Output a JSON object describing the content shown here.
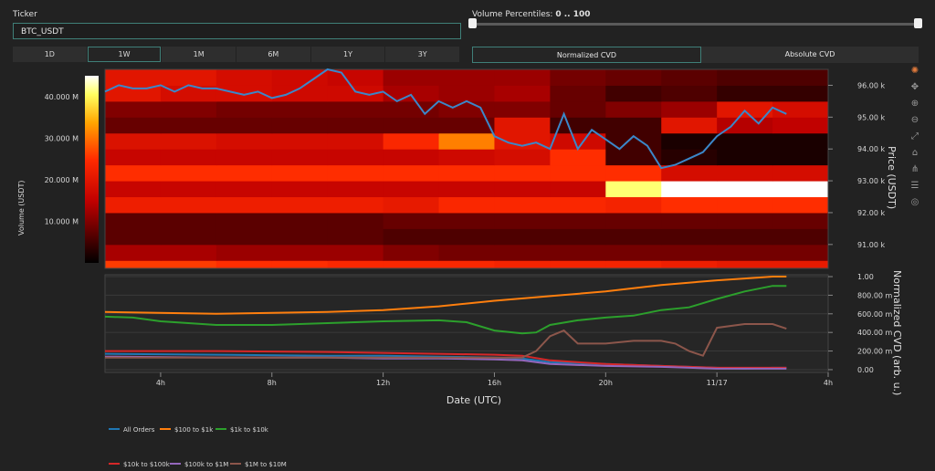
{
  "ticker": {
    "label": "Ticker",
    "value": "BTC_USDT"
  },
  "timeframes": [
    "1D",
    "1W",
    "1M",
    "6M",
    "1Y",
    "3Y"
  ],
  "active_timeframe": "1W",
  "volume_percentiles": {
    "label": "Volume Percentiles:",
    "value": "0 .. 100",
    "min": 0,
    "max": 100
  },
  "cvd_modes": {
    "normalized": "Normalized CVD",
    "absolute": "Absolute CVD",
    "active": "normalized"
  },
  "modebar_icons": [
    "plotly-logo-icon",
    "pan-icon",
    "zoom-in-icon",
    "zoom-out-icon",
    "autoscale-icon",
    "reset-icon",
    "spike-icon",
    "compare-icon",
    "hover-icon"
  ],
  "colors": {
    "accent": "#3f7f78",
    "all_orders": "#1f77b4",
    "r100_1k": "#ff7f0e",
    "r1k_10k": "#2ca02c",
    "r10k_100k": "#d62728",
    "r100k_1m": "#9467bd",
    "r1m_10m": "#8c564b"
  },
  "chart_data": [
    {
      "type": "heatmap",
      "colorbar": {
        "title": "Volume (USDT)",
        "ticks": [
          "10.000 M",
          "20.000 M",
          "30.000 M",
          "40.000 M"
        ],
        "tick_values": [
          10,
          20,
          30,
          40
        ],
        "range": [
          0,
          45
        ]
      },
      "y_right": {
        "label": "Price (USDT)",
        "ticks": [
          "91.00 k",
          "92.00 k",
          "93.00 k",
          "94.00 k",
          "95.00 k",
          "96.00 k"
        ],
        "tick_values": [
          91000,
          92000,
          93000,
          94000,
          95000,
          96000
        ],
        "range": [
          90250,
          96500
        ]
      },
      "x_range_hours": [
        2,
        28
      ],
      "price_bins": [
        90250,
        90750,
        91250,
        91750,
        92250,
        92750,
        93250,
        93750,
        94250,
        94750,
        95250,
        95750,
        96250
      ],
      "time_bins": [
        2,
        4,
        6,
        8,
        10,
        12,
        14,
        16,
        18,
        20,
        22,
        24,
        26,
        28
      ],
      "z": [
        [
          26,
          26,
          25,
          25,
          24,
          24,
          24,
          23,
          23,
          23,
          22,
          21,
          21
        ],
        [
          13,
          13,
          12,
          12,
          12,
          10,
          9,
          9,
          9,
          9,
          9,
          9,
          9
        ],
        [
          7,
          7,
          7,
          7,
          7,
          6,
          6,
          6,
          6,
          6,
          6,
          6,
          6
        ],
        [
          7,
          7,
          7,
          7,
          7,
          8,
          8,
          8,
          8,
          8,
          8,
          8,
          8
        ],
        [
          22,
          22,
          22,
          22,
          22,
          21,
          24,
          24,
          24,
          23,
          25,
          25,
          25
        ],
        [
          16,
          16,
          16,
          16,
          16,
          16,
          16,
          16,
          16,
          41,
          45,
          45,
          45
        ],
        [
          25,
          25,
          25,
          25,
          25,
          25,
          25,
          25,
          25,
          25,
          18,
          18,
          18
        ],
        [
          16,
          16,
          16,
          16,
          16,
          16,
          17,
          18,
          25,
          5,
          3,
          2,
          2
        ],
        [
          19,
          19,
          18,
          18,
          18,
          24,
          31,
          20,
          17,
          5,
          2,
          2,
          2
        ],
        [
          8,
          8,
          8,
          8,
          8,
          8,
          8,
          20,
          5,
          5,
          20,
          14,
          15
        ],
        [
          10,
          10,
          9,
          9,
          9,
          9,
          10,
          10,
          8,
          10,
          12,
          20,
          18
        ],
        [
          20,
          18,
          18,
          17,
          17,
          13,
          12,
          13,
          8,
          5,
          6,
          4,
          4
        ],
        [
          20,
          20,
          18,
          17,
          16,
          12,
          12,
          12,
          9,
          8,
          7,
          6,
          6
        ]
      ],
      "price_series": {
        "name": "",
        "color": "#3b87c9",
        "x": [
          2,
          2.5,
          3,
          3.5,
          4,
          4.5,
          5,
          5.5,
          6,
          6.5,
          7,
          7.5,
          8,
          8.5,
          9,
          9.5,
          10,
          10.5,
          11,
          11.5,
          12,
          12.5,
          13,
          13.5,
          14,
          14.5,
          15,
          15.5,
          16,
          16.5,
          17,
          17.5,
          18,
          18.5,
          19,
          19.5,
          20,
          20.5,
          21,
          21.5,
          22,
          22.5,
          23,
          23.5,
          24,
          24.5,
          25,
          25.5,
          26,
          26.5
        ],
        "y": [
          95800,
          96000,
          95900,
          95900,
          96000,
          95800,
          96000,
          95900,
          95900,
          95800,
          95700,
          95800,
          95600,
          95700,
          95900,
          96200,
          96700,
          96400,
          95800,
          95700,
          95800,
          95500,
          95700,
          95100,
          95500,
          95300,
          95500,
          95300,
          94400,
          94200,
          94100,
          94200,
          94000,
          95100,
          94000,
          94600,
          94300,
          94000,
          94400,
          94100,
          93400,
          93500,
          93700,
          93900,
          94400,
          94700,
          95200,
          94800,
          95300,
          95100
        ]
      }
    },
    {
      "type": "line",
      "xlabel": "Date (UTC)",
      "ylabel": "Normalized CVD (arb. u.)",
      "y_ticks": [
        "0.00",
        "200.00 m",
        "400.00 m",
        "600.00 m",
        "800.00 m",
        "1.00"
      ],
      "y_tick_values": [
        0,
        0.2,
        0.4,
        0.6,
        0.8,
        1.0
      ],
      "ylim": [
        -0.03,
        1.02
      ],
      "x_ticks": [
        "4h",
        "8h",
        "12h",
        "16h",
        "20h",
        "11/17",
        "4h"
      ],
      "x_tick_values": [
        4,
        8,
        12,
        16,
        20,
        24,
        28
      ],
      "x_range_hours": [
        2,
        28
      ],
      "series": [
        {
          "name": "All Orders",
          "color": "#1f77b4",
          "x": [
            2,
            6,
            10,
            12,
            14,
            16,
            17,
            18,
            20,
            22,
            24,
            25,
            26,
            26.5
          ],
          "y": [
            0.17,
            0.16,
            0.15,
            0.15,
            0.14,
            0.13,
            0.12,
            0.08,
            0.06,
            0.04,
            0.02,
            0.01,
            0.02,
            0.02
          ]
        },
        {
          "name": "$100 to $1k",
          "color": "#ff7f0e",
          "x": [
            2,
            6,
            10,
            12,
            14,
            16,
            18,
            20,
            22,
            24,
            25,
            26,
            26.5
          ],
          "y": [
            0.62,
            0.6,
            0.62,
            0.64,
            0.68,
            0.74,
            0.79,
            0.84,
            0.91,
            0.96,
            0.98,
            1.0,
            1.0
          ]
        },
        {
          "name": "$1k to $10k",
          "color": "#2ca02c",
          "x": [
            2,
            3,
            4,
            6,
            8,
            10,
            12,
            14,
            15,
            16,
            17,
            17.5,
            18,
            19,
            20,
            21,
            22,
            23,
            24,
            25,
            26,
            26.5
          ],
          "y": [
            0.57,
            0.56,
            0.52,
            0.48,
            0.48,
            0.5,
            0.52,
            0.53,
            0.51,
            0.42,
            0.39,
            0.4,
            0.48,
            0.53,
            0.56,
            0.58,
            0.64,
            0.67,
            0.76,
            0.84,
            0.9,
            0.9
          ]
        },
        {
          "name": "$10k to $100k",
          "color": "#d62728",
          "x": [
            2,
            6,
            10,
            12,
            14,
            16,
            17,
            18,
            20,
            22,
            24,
            26,
            26.5
          ],
          "y": [
            0.2,
            0.2,
            0.19,
            0.18,
            0.17,
            0.16,
            0.15,
            0.1,
            0.06,
            0.04,
            0.02,
            0.02,
            0.02
          ]
        },
        {
          "name": "$100k to $1M",
          "color": "#9467bd",
          "x": [
            2,
            6,
            10,
            12,
            14,
            16,
            17,
            18,
            20,
            22,
            24,
            26,
            26.5
          ],
          "y": [
            0.14,
            0.13,
            0.13,
            0.12,
            0.12,
            0.11,
            0.1,
            0.06,
            0.04,
            0.03,
            0.01,
            0.01,
            0.01
          ]
        },
        {
          "name": "$1M to $10M",
          "color": "#8c564b",
          "x": [
            2,
            16,
            17,
            17.5,
            18,
            18.5,
            19,
            20,
            21,
            22,
            22.5,
            23,
            23.5,
            24,
            25,
            26,
            26.5
          ],
          "y": [
            0.13,
            0.13,
            0.13,
            0.2,
            0.36,
            0.42,
            0.28,
            0.28,
            0.31,
            0.31,
            0.28,
            0.2,
            0.15,
            0.45,
            0.49,
            0.49,
            0.44
          ]
        }
      ]
    }
  ]
}
